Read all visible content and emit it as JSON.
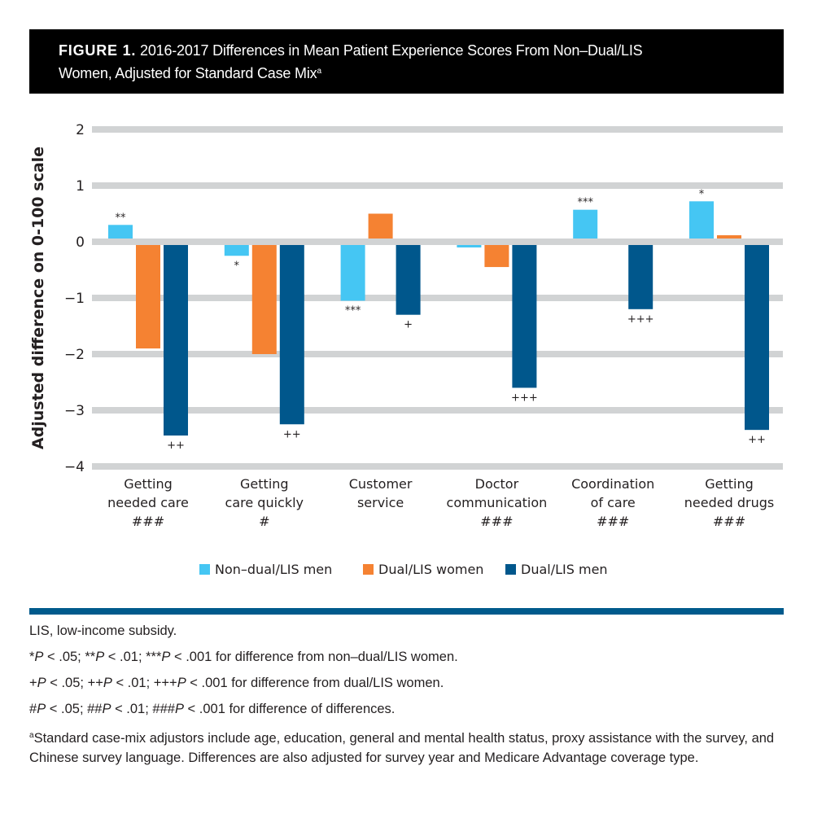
{
  "header": {
    "figure_label": "FIGURE 1.",
    "title_line1": " 2016-2017 Differences in Mean Patient Experience Scores From Non–Dual/LIS",
    "title_line2": "Women, Adjusted for Standard Case Mix",
    "title_sup": "a"
  },
  "chart_data": {
    "type": "bar",
    "title": "2016-2017 Differences in Mean Patient Experience Scores From Non–Dual/LIS Women, Adjusted for Standard Case Mix",
    "xlabel": "",
    "ylabel": "Adjusted difference on 0-100 scale",
    "ylim": [
      -4,
      2
    ],
    "yticks": [
      2,
      1,
      0,
      -1,
      -2,
      -3,
      -4
    ],
    "ytick_labels": [
      "2",
      "1",
      "0",
      "−1",
      "−2",
      "−3",
      "−4"
    ],
    "grid": true,
    "legend_position": "bottom",
    "categories": [
      {
        "lines": [
          "Getting",
          "needed care"
        ],
        "sig": "###"
      },
      {
        "lines": [
          "Getting",
          "care quickly"
        ],
        "sig": "#"
      },
      {
        "lines": [
          "Customer",
          "service"
        ],
        "sig": ""
      },
      {
        "lines": [
          "Doctor",
          "communication"
        ],
        "sig": "###"
      },
      {
        "lines": [
          "Coordination",
          "of care"
        ],
        "sig": "###"
      },
      {
        "lines": [
          "Getting",
          "needed drugs"
        ],
        "sig": "###"
      }
    ],
    "series": [
      {
        "name": "Non–dual/LIS men",
        "color": "#45c6f3",
        "values": [
          0.3,
          -0.25,
          -1.05,
          -0.1,
          0.57,
          0.72
        ],
        "sig": [
          "**",
          "*",
          "***",
          "",
          "***",
          "*"
        ]
      },
      {
        "name": "Dual/LIS women",
        "color": "#f58232",
        "values": [
          -1.9,
          -2.0,
          0.5,
          -0.45,
          0.0,
          0.05
        ],
        "sig": [
          "",
          "",
          "",
          "",
          "",
          ""
        ]
      },
      {
        "name": "Dual/LIS men",
        "color": "#00578c",
        "values": [
          -3.45,
          -3.25,
          -1.3,
          -2.6,
          -1.2,
          -3.35
        ],
        "sig": [
          "++",
          "++",
          "+",
          "+++",
          "+++",
          "++"
        ]
      }
    ]
  },
  "legend": [
    {
      "label": "Non–dual/LIS men",
      "color": "#45c6f3"
    },
    {
      "label": "Dual/LIS women",
      "color": "#f58232"
    },
    {
      "label": "Dual/LIS men",
      "color": "#00578c"
    }
  ],
  "notes": {
    "abbrev": "LIS, low-income subsidy.",
    "star_note": {
      "p1": "*",
      "p2": " < .05; **",
      "p3": " < .01; ***",
      "p4": " < .001 for difference from non–dual/LIS women."
    },
    "plus_note": {
      "p1": "+",
      "p2": " < .05; ++",
      "p3": " < .01; +++",
      "p4": " < .001 for difference from dual/LIS women."
    },
    "hash_note": {
      "p1": "#",
      "p2": " < .05; ##",
      "p3": " < .01; ###",
      "p4": " < .001 for difference of differences."
    },
    "p_letter": "P",
    "footnote_sup": "a",
    "footnote": "Standard case-mix adjustors include age, education, general and mental health status, proxy assistance with the survey, and Chinese survey language. Differences are also adjusted for survey year and Medicare Advantage coverage type."
  }
}
